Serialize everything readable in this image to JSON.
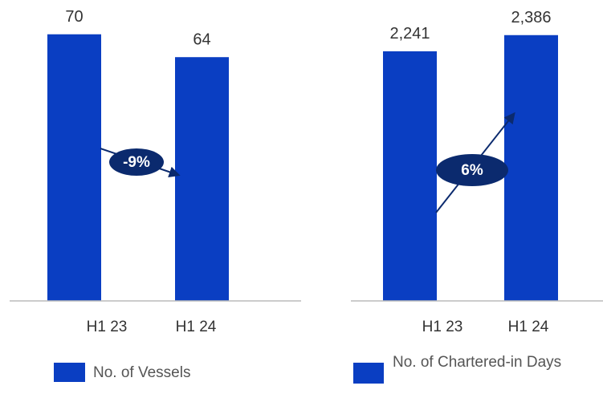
{
  "chart_data": [
    {
      "type": "bar",
      "categories": [
        "H1 23",
        "H1 24"
      ],
      "values": [
        70,
        64
      ],
      "color": "#0a3ec2",
      "ylim": [
        0,
        75
      ],
      "annotation": "-9%",
      "annotation_color": "#0b2a6e",
      "legend": "No. of Vessels"
    },
    {
      "type": "bar",
      "categories": [
        "H1 23",
        "H1 24"
      ],
      "values": [
        2241,
        2386
      ],
      "value_labels": [
        "2,241",
        "2,386"
      ],
      "color": "#0a3ec2",
      "ylim": [
        0,
        2550
      ],
      "annotation": "6%",
      "annotation_color": "#0b2a6e",
      "legend": "No. of Chartered-in Days"
    }
  ]
}
